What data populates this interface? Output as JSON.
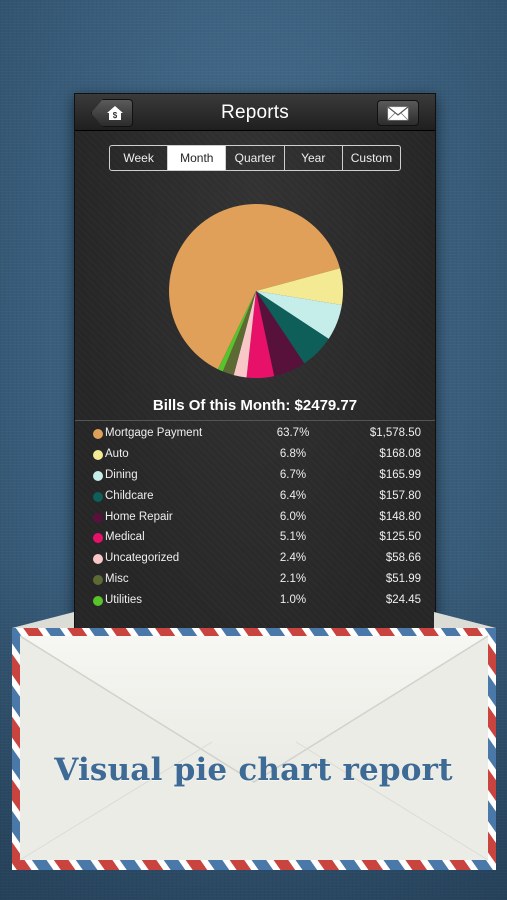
{
  "nav": {
    "title": "Reports",
    "left_icon": "home-dollar-icon",
    "right_icon": "mail-icon"
  },
  "segments": [
    {
      "label": "Week",
      "active": false
    },
    {
      "label": "Month",
      "active": true
    },
    {
      "label": "Quarter",
      "active": false
    },
    {
      "label": "Year",
      "active": false
    },
    {
      "label": "Custom",
      "active": false
    }
  ],
  "summary": {
    "title": "Bills Of this Month: $2479.77"
  },
  "chart_data": {
    "type": "pie",
    "categories": [
      "Mortgage Payment",
      "Auto",
      "Dining",
      "Childcare",
      "Home Repair",
      "Medical",
      "Uncategorized",
      "Misc",
      "Utilities"
    ],
    "values": [
      63.7,
      6.8,
      6.7,
      6.4,
      6.0,
      5.1,
      2.4,
      2.1,
      1.0
    ],
    "colors": [
      "#e0a05a",
      "#f4ea93",
      "#c5eeeb",
      "#0e5e5a",
      "#58113a",
      "#e8116a",
      "#f8c8c8",
      "#5e6a34",
      "#58c32b"
    ]
  },
  "legend": [
    {
      "name": "Mortgage Payment",
      "pct": "63.7%",
      "amount": "$1,578.50",
      "color": "#e0a05a"
    },
    {
      "name": "Auto",
      "pct": "6.8%",
      "amount": "$168.08",
      "color": "#f4ea93"
    },
    {
      "name": "Dining",
      "pct": "6.7%",
      "amount": "$165.99",
      "color": "#c5eeeb"
    },
    {
      "name": "Childcare",
      "pct": "6.4%",
      "amount": "$157.80",
      "color": "#0e5e5a"
    },
    {
      "name": "Home Repair",
      "pct": "6.0%",
      "amount": "$148.80",
      "color": "#58113a"
    },
    {
      "name": "Medical",
      "pct": "5.1%",
      "amount": "$125.50",
      "color": "#e8116a"
    },
    {
      "name": "Uncategorized",
      "pct": "2.4%",
      "amount": "$58.66",
      "color": "#f8c8c8"
    },
    {
      "name": "Misc",
      "pct": "2.1%",
      "amount": "$51.99",
      "color": "#5e6a34"
    },
    {
      "name": "Utilities",
      "pct": "1.0%",
      "amount": "$24.45",
      "color": "#58c32b"
    }
  ],
  "promo": {
    "caption": "Visual pie chart report"
  },
  "colors": {
    "background": "#3a5f7d",
    "card": "#262626",
    "caption": "#3d6b95",
    "stripe_red": "#c9433f",
    "stripe_blue": "#4a78a8"
  }
}
